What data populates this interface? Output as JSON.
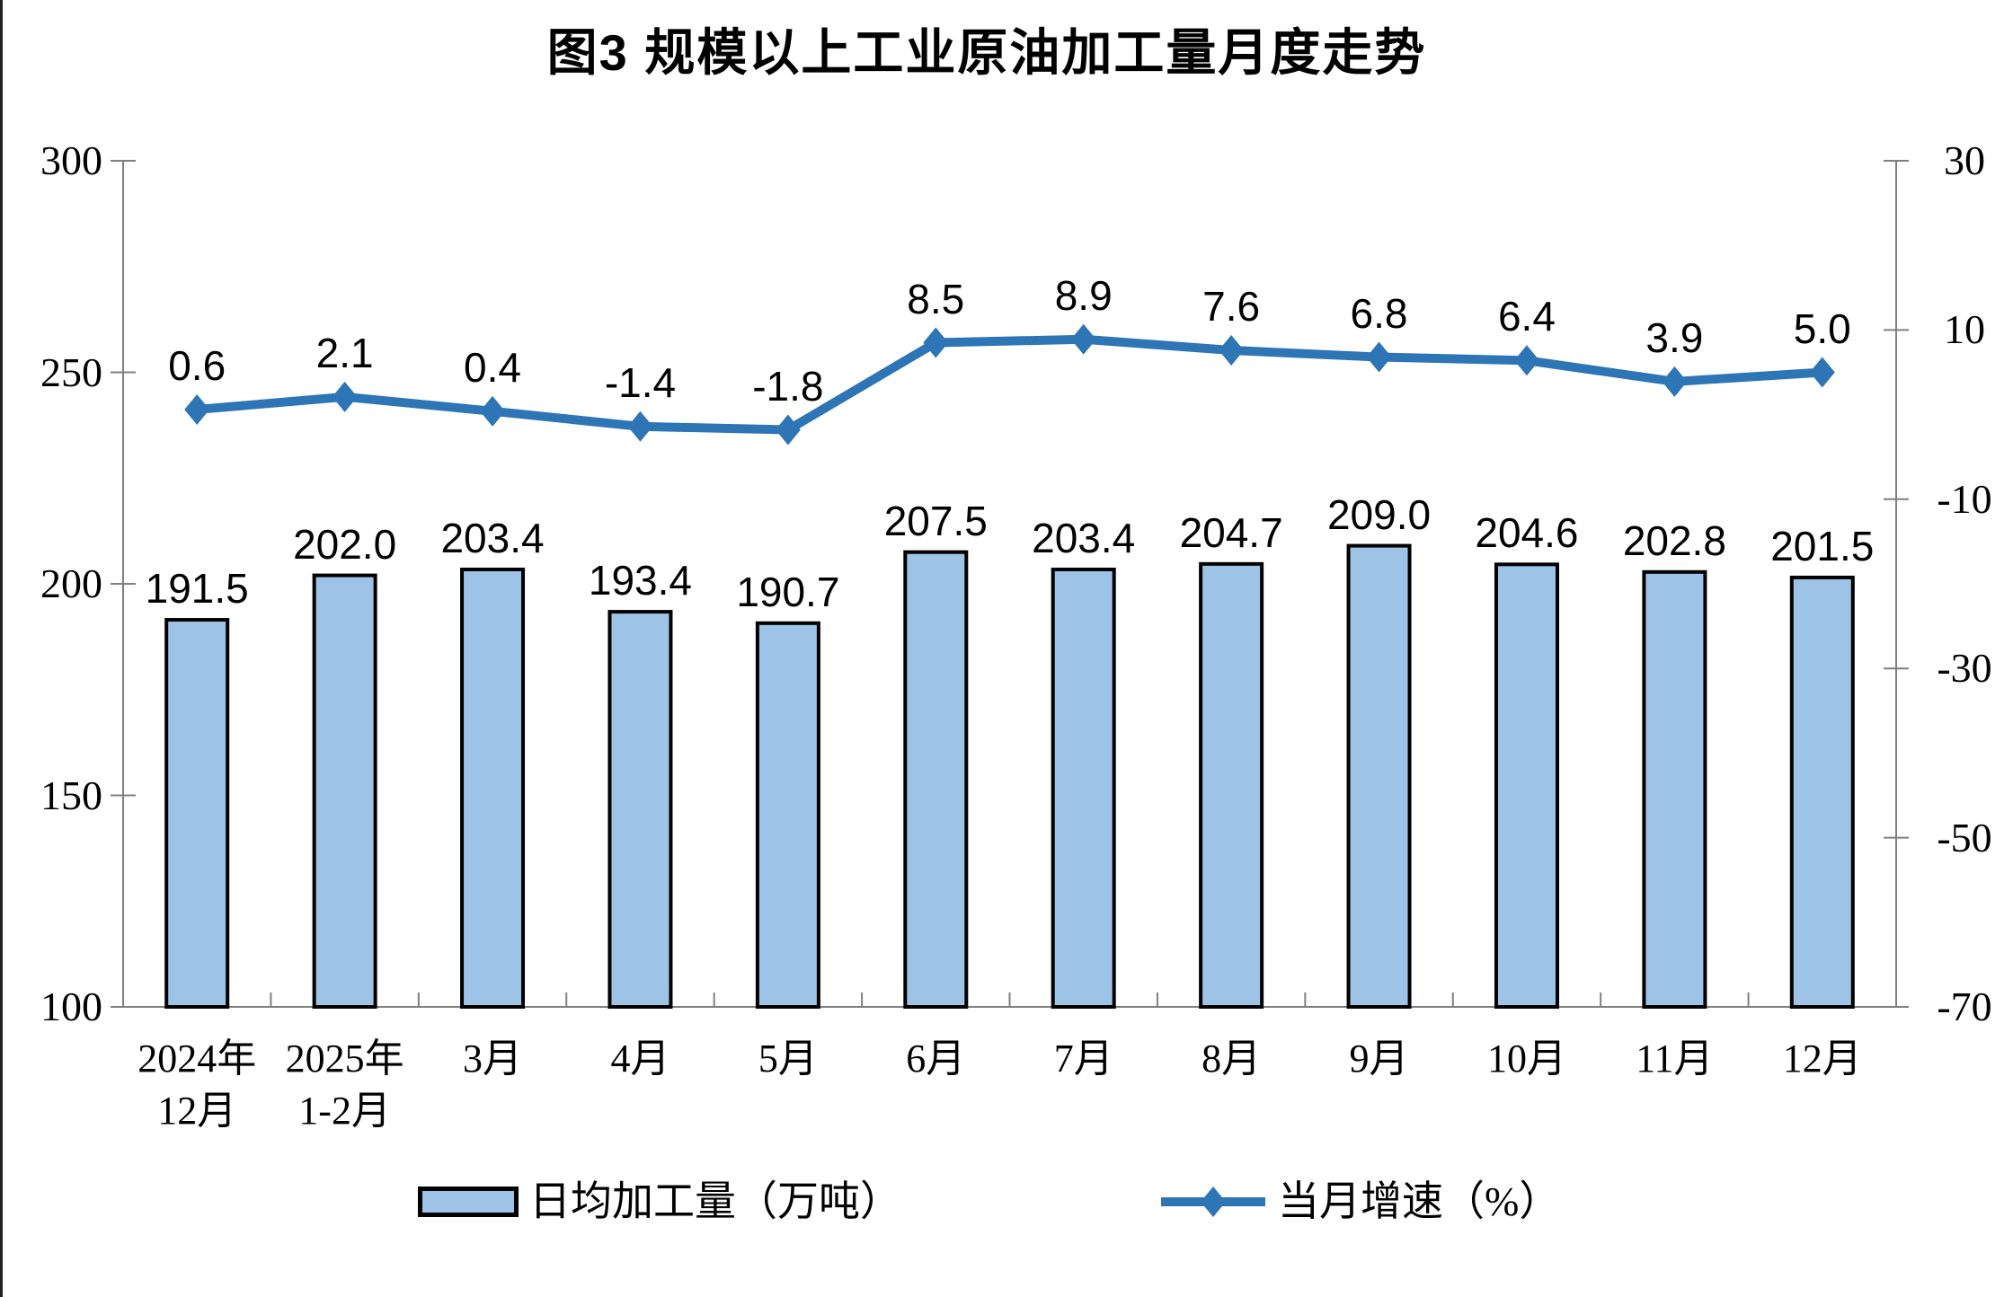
{
  "title": "图3  规模以上工业原油加工量月度走势",
  "legend": [
    {
      "label": "日均加工量（万吨）",
      "marker": "bar-swatch"
    },
    {
      "label": "当月增速（%）",
      "marker": "line-diamond"
    }
  ],
  "chart_data": {
    "type": "bar+line",
    "categories": [
      [
        "2024年",
        "12月"
      ],
      [
        "2025年",
        "1-2月"
      ],
      [
        "3月"
      ],
      [
        "4月"
      ],
      [
        "5月"
      ],
      [
        "6月"
      ],
      [
        "7月"
      ],
      [
        "8月"
      ],
      [
        "9月"
      ],
      [
        "10月"
      ],
      [
        "11月"
      ],
      [
        "12月"
      ]
    ],
    "series": [
      {
        "name": "日均加工量（万吨）",
        "type": "bar",
        "axis": "left",
        "values": [
          191.5,
          202.0,
          203.4,
          193.4,
          190.7,
          207.5,
          203.4,
          204.7,
          209.0,
          204.6,
          202.8,
          201.5
        ],
        "labels": [
          "191.5",
          "202.0",
          "203.4",
          "193.4",
          "190.7",
          "207.5",
          "203.4",
          "204.7",
          "209.0",
          "204.6",
          "202.8",
          "201.5"
        ]
      },
      {
        "name": "当月增速（%）",
        "type": "line",
        "axis": "right",
        "values": [
          0.6,
          2.1,
          0.4,
          -1.4,
          -1.8,
          8.5,
          8.9,
          7.6,
          6.8,
          6.4,
          3.9,
          5.0
        ],
        "labels": [
          "0.6",
          "2.1",
          "0.4",
          "-1.4",
          "-1.8",
          "8.5",
          "8.9",
          "7.6",
          "6.8",
          "6.4",
          "3.9",
          "5.0"
        ]
      }
    ],
    "left_axis": {
      "min": 100,
      "max": 300,
      "ticks": [
        "300",
        "250",
        "200",
        "150",
        "100"
      ]
    },
    "right_axis": {
      "min": -70,
      "max": 30,
      "ticks": [
        "30",
        "10",
        "-10",
        "-30",
        "-50",
        "-70"
      ]
    },
    "grid": false,
    "legend_position": "bottom",
    "colors": {
      "bar_fill": "#9DC3E6",
      "bar_border": "#000000",
      "line": "#2E75B6",
      "axis": "#7F7F7F",
      "text": "#000000",
      "background": "#FFFFFF"
    }
  }
}
